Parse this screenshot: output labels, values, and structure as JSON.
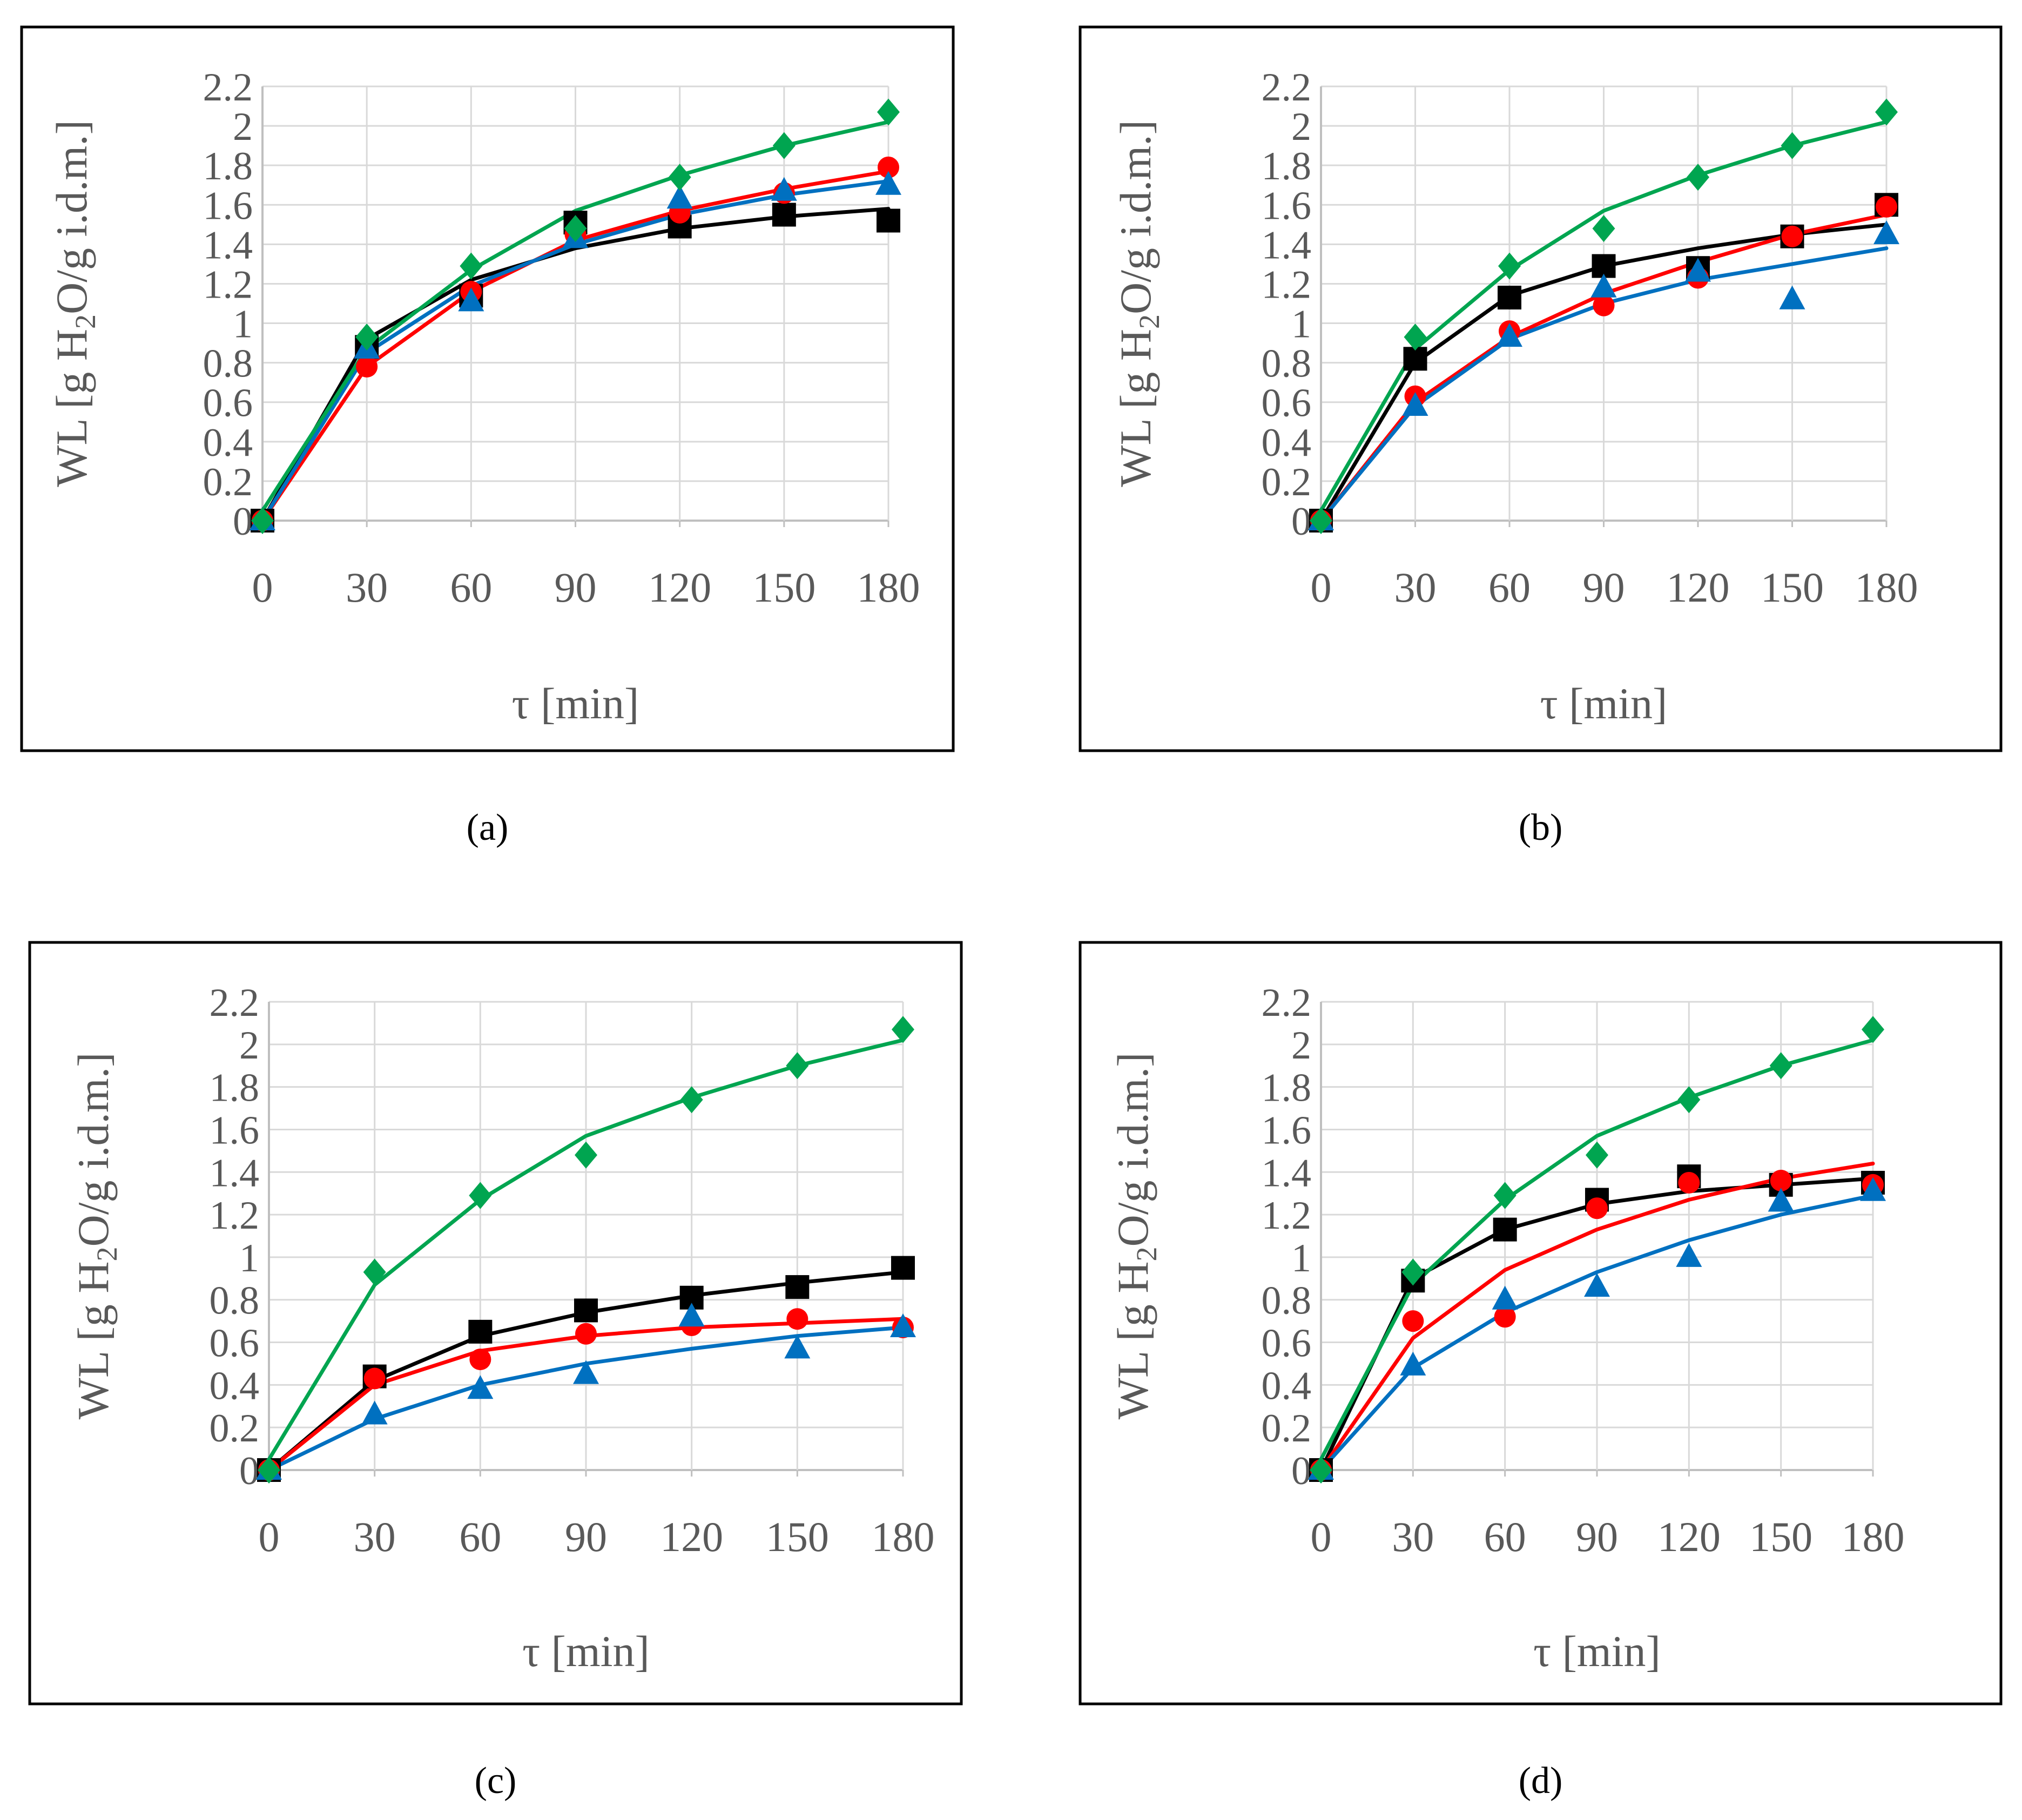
{
  "figure": {
    "panels": [
      "a",
      "b",
      "c",
      "d"
    ]
  },
  "colors": {
    "black": "#000000",
    "red": "#ff0000",
    "blue": "#0070c0",
    "green": "#00a550",
    "grid": "#d9d9d9",
    "axis": "#bfbfbf",
    "tick_text": "#595959"
  },
  "chart_data": [
    {
      "panel": "a",
      "caption": "(a)",
      "type": "scatter",
      "xlabel": "τ [min]",
      "ylabel_parts": [
        "WL [g H",
        "2",
        "O/g i.d.m.]"
      ],
      "x": [
        0,
        30,
        60,
        90,
        120,
        150,
        180
      ],
      "xticks": [
        "0",
        "30",
        "60",
        "90",
        "120",
        "150",
        "180"
      ],
      "yticks": [
        "0",
        "0.2",
        "0.4",
        "0.6",
        "0.8",
        "1",
        "1.2",
        "1.4",
        "1.6",
        "1.8",
        "2",
        "2.2"
      ],
      "xlim": [
        0,
        180
      ],
      "ylim": [
        0,
        2.2
      ],
      "series": [
        {
          "color": "black",
          "marker": "square",
          "points": [
            0,
            0.88,
            1.14,
            1.51,
            1.49,
            1.55,
            1.52
          ],
          "fit": [
            0,
            0.92,
            1.22,
            1.38,
            1.48,
            1.54,
            1.58
          ]
        },
        {
          "color": "red",
          "marker": "circle",
          "points": [
            0,
            0.78,
            1.16,
            1.45,
            1.56,
            1.66,
            1.79
          ],
          "fit": [
            0,
            0.78,
            1.16,
            1.42,
            1.57,
            1.68,
            1.77
          ]
        },
        {
          "color": "blue",
          "marker": "triangle",
          "points": [
            0,
            0.87,
            1.11,
            1.43,
            1.63,
            1.67,
            1.7
          ],
          "fit": [
            0,
            0.85,
            1.19,
            1.4,
            1.55,
            1.65,
            1.72
          ]
        },
        {
          "color": "green",
          "marker": "diamond",
          "points": [
            0,
            0.93,
            1.29,
            1.48,
            1.74,
            1.9,
            2.07
          ],
          "fit": [
            0.05,
            0.87,
            1.27,
            1.57,
            1.75,
            1.9,
            2.02
          ]
        }
      ]
    },
    {
      "panel": "b",
      "caption": "(b)",
      "type": "scatter",
      "xlabel": "τ [min]",
      "ylabel_parts": [
        "WL [g H",
        "2",
        "O/g i.d.m.]"
      ],
      "x": [
        0,
        30,
        60,
        90,
        120,
        150,
        180
      ],
      "xticks": [
        "0",
        "30",
        "60",
        "90",
        "120",
        "150",
        "180"
      ],
      "yticks": [
        "0",
        "0.2",
        "0.4",
        "0.6",
        "0.8",
        "1",
        "1.2",
        "1.4",
        "1.6",
        "1.8",
        "2",
        "2.2"
      ],
      "xlim": [
        0,
        180
      ],
      "ylim": [
        0,
        2.2
      ],
      "series": [
        {
          "color": "black",
          "marker": "square",
          "points": [
            0,
            0.82,
            1.13,
            1.29,
            1.28,
            1.44,
            1.6
          ],
          "fit": [
            0,
            0.8,
            1.14,
            1.29,
            1.38,
            1.45,
            1.5
          ]
        },
        {
          "color": "red",
          "marker": "circle",
          "points": [
            0,
            0.63,
            0.96,
            1.09,
            1.23,
            1.44,
            1.59
          ],
          "fit": [
            0,
            0.6,
            0.93,
            1.15,
            1.31,
            1.45,
            1.55
          ]
        },
        {
          "color": "blue",
          "marker": "triangle",
          "points": [
            0,
            0.58,
            0.93,
            1.18,
            1.26,
            1.12,
            1.45
          ],
          "fit": [
            0,
            0.58,
            0.92,
            1.1,
            1.22,
            1.3,
            1.38
          ]
        },
        {
          "color": "green",
          "marker": "diamond",
          "points": [
            0,
            0.93,
            1.29,
            1.48,
            1.74,
            1.9,
            2.07
          ],
          "fit": [
            0.05,
            0.87,
            1.27,
            1.57,
            1.75,
            1.9,
            2.02
          ]
        }
      ]
    },
    {
      "panel": "c",
      "caption": "(c)",
      "type": "scatter",
      "xlabel": "τ [min]",
      "ylabel_parts": [
        "WL [g H",
        "2",
        "O/g i.d.m.]"
      ],
      "x": [
        0,
        30,
        60,
        90,
        120,
        150,
        180
      ],
      "xticks": [
        "0",
        "30",
        "60",
        "90",
        "120",
        "150",
        "180"
      ],
      "yticks": [
        "0",
        "0.2",
        "0.4",
        "0.6",
        "0.8",
        "1",
        "1.2",
        "1.4",
        "1.6",
        "1.8",
        "2",
        "2.2"
      ],
      "xlim": [
        0,
        180
      ],
      "ylim": [
        0,
        2.2
      ],
      "series": [
        {
          "color": "black",
          "marker": "square",
          "points": [
            0,
            0.44,
            0.65,
            0.75,
            0.81,
            0.86,
            0.95
          ],
          "fit": [
            0,
            0.42,
            0.63,
            0.74,
            0.82,
            0.88,
            0.93
          ]
        },
        {
          "color": "red",
          "marker": "circle",
          "points": [
            0,
            0.43,
            0.52,
            0.64,
            0.68,
            0.71,
            0.67
          ],
          "fit": [
            0,
            0.4,
            0.56,
            0.63,
            0.67,
            0.69,
            0.71
          ]
        },
        {
          "color": "blue",
          "marker": "triangle",
          "points": [
            0,
            0.26,
            0.38,
            0.45,
            0.72,
            0.57,
            0.67
          ],
          "fit": [
            0,
            0.24,
            0.4,
            0.5,
            0.57,
            0.63,
            0.67
          ]
        },
        {
          "color": "green",
          "marker": "diamond",
          "points": [
            0,
            0.93,
            1.29,
            1.48,
            1.74,
            1.9,
            2.07
          ],
          "fit": [
            0.05,
            0.87,
            1.27,
            1.57,
            1.75,
            1.9,
            2.02
          ]
        }
      ]
    },
    {
      "panel": "d",
      "caption": "(d)",
      "type": "scatter",
      "xlabel": "τ [min]",
      "ylabel_parts": [
        "WL [g H",
        "2",
        "O/g i.d.m.]"
      ],
      "x": [
        0,
        30,
        60,
        90,
        120,
        150,
        180
      ],
      "xticks": [
        "0",
        "30",
        "60",
        "90",
        "120",
        "150",
        "180"
      ],
      "yticks": [
        "0",
        "0.2",
        "0.4",
        "0.6",
        "0.8",
        "1",
        "1.2",
        "1.4",
        "1.6",
        "1.8",
        "2",
        "2.2"
      ],
      "xlim": [
        0,
        180
      ],
      "ylim": [
        0,
        2.2
      ],
      "series": [
        {
          "color": "black",
          "marker": "square",
          "points": [
            0,
            0.89,
            1.13,
            1.27,
            1.38,
            1.34,
            1.35
          ],
          "fit": [
            0,
            0.9,
            1.13,
            1.25,
            1.31,
            1.34,
            1.37
          ]
        },
        {
          "color": "red",
          "marker": "circle",
          "points": [
            0,
            0.7,
            0.72,
            1.23,
            1.35,
            1.36,
            1.34
          ],
          "fit": [
            0,
            0.62,
            0.94,
            1.13,
            1.27,
            1.37,
            1.44
          ]
        },
        {
          "color": "blue",
          "marker": "triangle",
          "points": [
            0,
            0.49,
            0.8,
            0.86,
            1.0,
            1.26,
            1.31
          ],
          "fit": [
            0,
            0.48,
            0.74,
            0.93,
            1.08,
            1.2,
            1.29
          ]
        },
        {
          "color": "green",
          "marker": "diamond",
          "points": [
            0,
            0.93,
            1.29,
            1.48,
            1.74,
            1.9,
            2.07
          ],
          "fit": [
            0.05,
            0.87,
            1.27,
            1.57,
            1.75,
            1.9,
            2.02
          ]
        }
      ]
    }
  ]
}
